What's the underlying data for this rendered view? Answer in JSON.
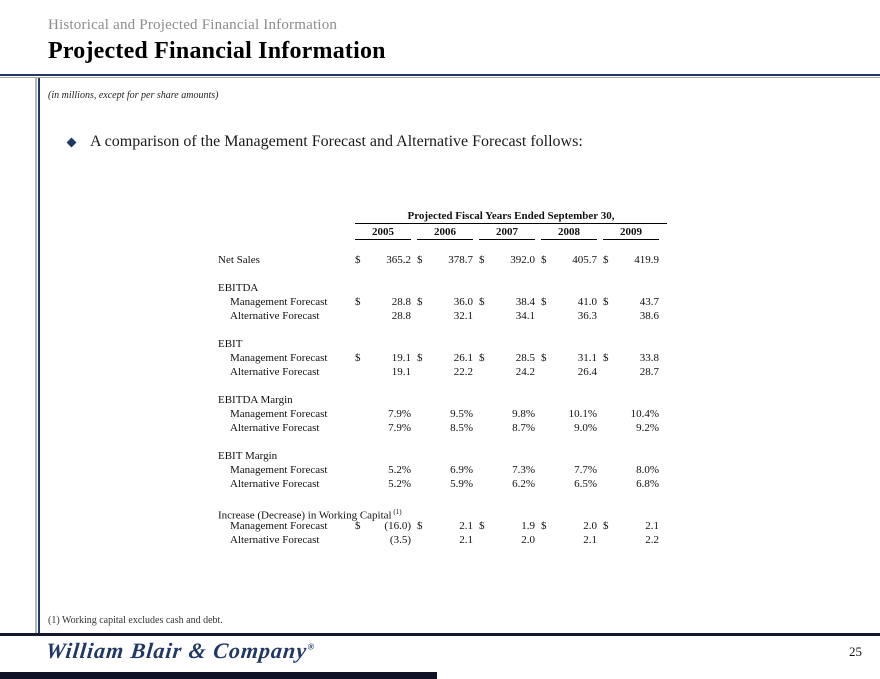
{
  "page": {
    "eyebrow": "Historical and Projected Financial Information",
    "title": "Projected Financial Information",
    "units_note": "(in millions, except for per share amounts)",
    "page_number": "25"
  },
  "bullet": {
    "text": "A comparison of the Management Forecast and Alternative Forecast follows:"
  },
  "table": {
    "spanner": "Projected Fiscal Years Ended September 30,",
    "years": [
      "2005",
      "2006",
      "2007",
      "2008",
      "2009"
    ],
    "currency_symbol": "$",
    "rows": [
      {
        "type": "data",
        "label": "Net Sales",
        "indent": false,
        "dollar": true,
        "values": [
          "365.2",
          "378.7",
          "392.0",
          "405.7",
          "419.9"
        ]
      },
      {
        "type": "spacer"
      },
      {
        "type": "section",
        "label": "EBITDA"
      },
      {
        "type": "data",
        "label": "Management Forecast",
        "indent": true,
        "dollar": true,
        "values": [
          "28.8",
          "36.0",
          "38.4",
          "41.0",
          "43.7"
        ]
      },
      {
        "type": "data",
        "label": "Alternative Forecast",
        "indent": true,
        "dollar": false,
        "values": [
          "28.8",
          "32.1",
          "34.1",
          "36.3",
          "38.6"
        ]
      },
      {
        "type": "spacer"
      },
      {
        "type": "section",
        "label": "EBIT"
      },
      {
        "type": "data",
        "label": "Management Forecast",
        "indent": true,
        "dollar": true,
        "values": [
          "19.1",
          "26.1",
          "28.5",
          "31.1",
          "33.8"
        ]
      },
      {
        "type": "data",
        "label": "Alternative Forecast",
        "indent": true,
        "dollar": false,
        "values": [
          "19.1",
          "22.2",
          "24.2",
          "26.4",
          "28.7"
        ]
      },
      {
        "type": "spacer"
      },
      {
        "type": "section",
        "label": "EBITDA Margin"
      },
      {
        "type": "data",
        "label": "Management Forecast",
        "indent": true,
        "dollar": false,
        "values": [
          "7.9%",
          "9.5%",
          "9.8%",
          "10.1%",
          "10.4%"
        ]
      },
      {
        "type": "data",
        "label": "Alternative Forecast",
        "indent": true,
        "dollar": false,
        "values": [
          "7.9%",
          "8.5%",
          "8.7%",
          "9.0%",
          "9.2%"
        ]
      },
      {
        "type": "spacer"
      },
      {
        "type": "section",
        "label": "EBIT Margin"
      },
      {
        "type": "data",
        "label": "Management Forecast",
        "indent": true,
        "dollar": false,
        "values": [
          "5.2%",
          "6.9%",
          "7.3%",
          "7.7%",
          "8.0%"
        ]
      },
      {
        "type": "data",
        "label": "Alternative Forecast",
        "indent": true,
        "dollar": false,
        "values": [
          "5.2%",
          "5.9%",
          "6.2%",
          "6.5%",
          "6.8%"
        ]
      },
      {
        "type": "spacer"
      },
      {
        "type": "section",
        "label": "Increase (Decrease) in Working Capital",
        "sup": "(1)"
      },
      {
        "type": "data",
        "label": "Management Forecast",
        "indent": true,
        "dollar": true,
        "values": [
          "(16.0)",
          "2.1",
          "1.9",
          "2.0",
          "2.1"
        ]
      },
      {
        "type": "data",
        "label": "Alternative Forecast",
        "indent": true,
        "dollar": false,
        "values": [
          "(3.5)",
          "2.1",
          "2.0",
          "2.1",
          "2.2"
        ]
      }
    ]
  },
  "footnote": "(1) Working capital excludes cash and debt.",
  "footer": {
    "logo_text": "William Blair & Company",
    "logo_registered": "®"
  },
  "colors": {
    "accent_navy": "#1f3864",
    "eyebrow_gray": "#8c8c8c",
    "footer_bar": "#0f1126"
  }
}
